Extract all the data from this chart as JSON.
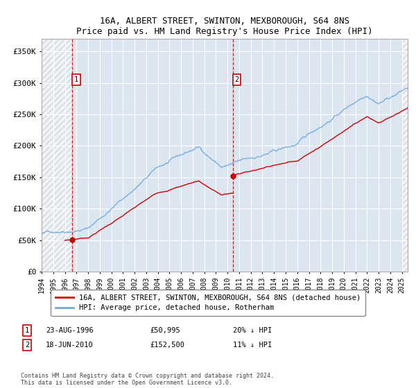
{
  "title": "16A, ALBERT STREET, SWINTON, MEXBOROUGH, S64 8NS",
  "subtitle": "Price paid vs. HM Land Registry's House Price Index (HPI)",
  "ylim": [
    0,
    370000
  ],
  "yticks": [
    0,
    50000,
    100000,
    150000,
    200000,
    250000,
    300000,
    350000
  ],
  "ytick_labels": [
    "£0",
    "£50K",
    "£100K",
    "£150K",
    "£200K",
    "£250K",
    "£300K",
    "£350K"
  ],
  "xlim_start": 1994.0,
  "xlim_end": 2025.5,
  "xticks": [
    1994,
    1995,
    1996,
    1997,
    1998,
    1999,
    2000,
    2001,
    2002,
    2003,
    2004,
    2005,
    2006,
    2007,
    2008,
    2009,
    2010,
    2011,
    2012,
    2013,
    2014,
    2015,
    2016,
    2017,
    2018,
    2019,
    2020,
    2021,
    2022,
    2023,
    2024,
    2025
  ],
  "sale1_x": 1996.64,
  "sale1_y": 50995,
  "sale2_x": 2010.46,
  "sale2_y": 152500,
  "hpi_color": "#6fa8dc",
  "price_color": "#cc0000",
  "legend1": "16A, ALBERT STREET, SWINTON, MEXBOROUGH, S64 8NS (detached house)",
  "legend2": "HPI: Average price, detached house, Rotherham",
  "sale1_date": "23-AUG-1996",
  "sale1_price": "£50,995",
  "sale1_hpi": "20% ↓ HPI",
  "sale2_date": "18-JUN-2010",
  "sale2_price": "£152,500",
  "sale2_hpi": "11% ↓ HPI",
  "footer": "Contains HM Land Registry data © Crown copyright and database right 2024.\nThis data is licensed under the Open Government Licence v3.0.",
  "bg_color": "#dce6f1",
  "grid_color": "#ffffff"
}
